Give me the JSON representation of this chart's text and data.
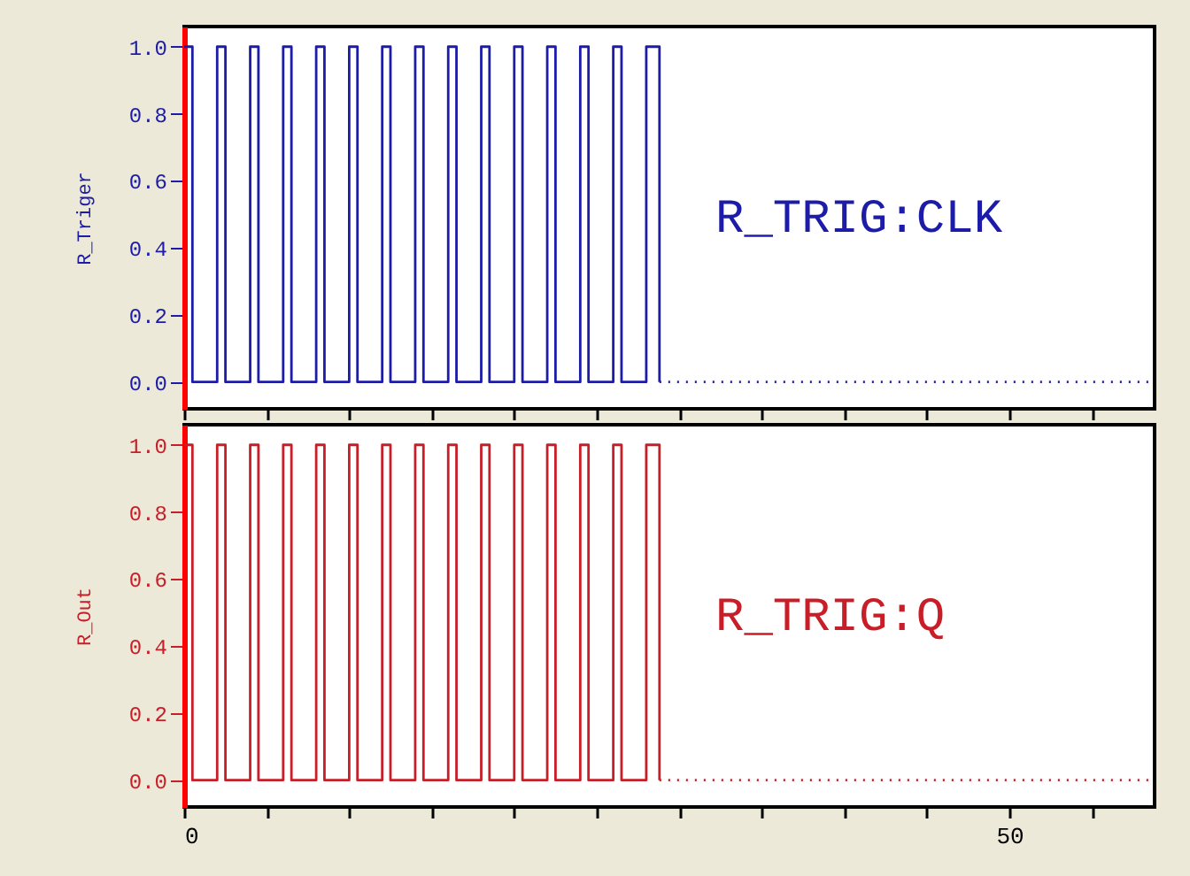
{
  "chart_data": [
    {
      "type": "step",
      "ylabel": "R_Triger",
      "annotations": [
        "R_TRIG:CLK"
      ],
      "xlim": [
        0,
        58.8
      ],
      "ylim": [
        -0.08,
        1.06
      ],
      "tick_labels": "y",
      "xticks": [
        {
          "value": 0,
          "label": null
        },
        {
          "value": 5,
          "label": null
        },
        {
          "value": 10,
          "label": null
        },
        {
          "value": 15,
          "label": null
        },
        {
          "value": 20,
          "label": null
        },
        {
          "value": 25,
          "label": null
        },
        {
          "value": 30,
          "label": null
        },
        {
          "value": 35,
          "label": null
        },
        {
          "value": 40,
          "label": null
        },
        {
          "value": 45,
          "label": null
        },
        {
          "value": 50,
          "label": null
        },
        {
          "value": 55,
          "label": null
        }
      ],
      "yticks": [
        {
          "value": 0,
          "label": "0.0"
        },
        {
          "value": 0.2,
          "label": "0.2"
        },
        {
          "value": 0.4,
          "label": "0.4"
        },
        {
          "value": 0.6,
          "label": "0.6"
        },
        {
          "value": 0.8,
          "label": "0.8"
        },
        {
          "value": 1,
          "label": "1.0"
        }
      ],
      "series": [
        {
          "color": "#1c1ca8",
          "x": [
            0,
            0.5,
            2,
            2.5,
            4,
            4.5,
            6,
            6.5,
            8,
            8.5,
            10,
            10.5,
            12,
            12.5,
            14,
            14.5,
            16,
            16.5,
            18,
            18.5,
            20,
            20.5,
            22,
            22.5,
            24,
            24.5,
            26,
            26.5,
            28,
            28.8
          ],
          "values": [
            1,
            0,
            1,
            0,
            1,
            0,
            1,
            0,
            1,
            0,
            1,
            0,
            1,
            0,
            1,
            0,
            1,
            0,
            1,
            0,
            1,
            0,
            1,
            0,
            1,
            0,
            1,
            0,
            1,
            0
          ]
        },
        {
          "color": "#1c1ca8",
          "line_style": "dotted",
          "x": [
            28.8,
            58.8
          ],
          "values": [
            0,
            0
          ]
        }
      ]
    },
    {
      "type": "step",
      "ylabel": "R_Out",
      "annotations": [
        "R_TRIG:Q"
      ],
      "xlim": [
        0,
        58.8
      ],
      "ylim": [
        -0.08,
        1.06
      ],
      "xticks": [
        {
          "value": 0,
          "label": "0"
        },
        {
          "value": 5,
          "label": null
        },
        {
          "value": 10,
          "label": null
        },
        {
          "value": 15,
          "label": null
        },
        {
          "value": 20,
          "label": null
        },
        {
          "value": 25,
          "label": null
        },
        {
          "value": 30,
          "label": null
        },
        {
          "value": 35,
          "label": null
        },
        {
          "value": 40,
          "label": null
        },
        {
          "value": 45,
          "label": null
        },
        {
          "value": 50,
          "label": "50"
        },
        {
          "value": 55,
          "label": null
        }
      ],
      "yticks": [
        {
          "value": 0,
          "label": "0.0"
        },
        {
          "value": 0.2,
          "label": "0.2"
        },
        {
          "value": 0.4,
          "label": "0.4"
        },
        {
          "value": 0.6,
          "label": "0.6"
        },
        {
          "value": 0.8,
          "label": "0.8"
        },
        {
          "value": 1,
          "label": "1.0"
        }
      ],
      "series": [
        {
          "color": "#c81e28",
          "x": [
            0,
            0.5,
            2,
            2.5,
            4,
            4.5,
            6,
            6.5,
            8,
            8.5,
            10,
            10.5,
            12,
            12.5,
            14,
            14.5,
            16,
            16.5,
            18,
            18.5,
            20,
            20.5,
            22,
            22.5,
            24,
            24.5,
            26,
            26.5,
            28,
            28.8
          ],
          "values": [
            1,
            0,
            1,
            0,
            1,
            0,
            1,
            0,
            1,
            0,
            1,
            0,
            1,
            0,
            1,
            0,
            1,
            0,
            1,
            0,
            1,
            0,
            1,
            0,
            1,
            0,
            1,
            0,
            1,
            0
          ]
        },
        {
          "color": "#c81e28",
          "line_style": "dotted",
          "x": [
            28.8,
            58.8
          ],
          "values": [
            0,
            0
          ]
        }
      ]
    }
  ]
}
